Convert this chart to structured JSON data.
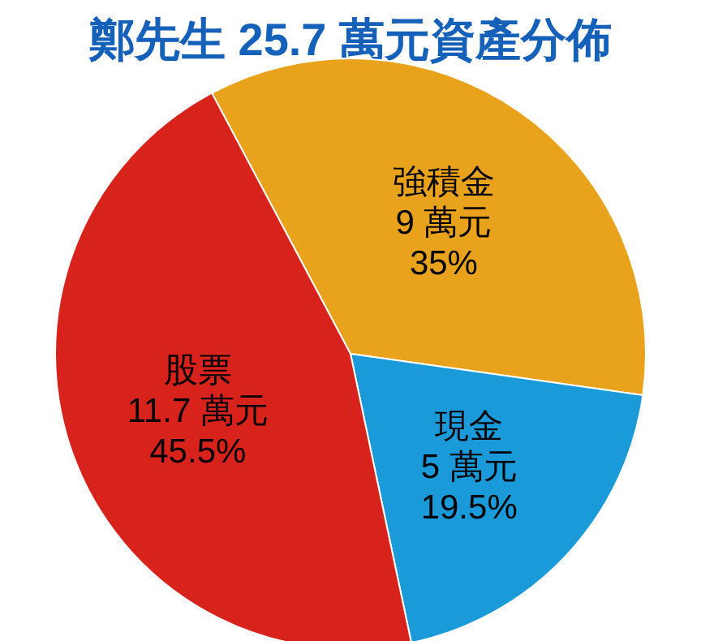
{
  "chart_data": {
    "type": "pie",
    "title": "鄭先生 25.7 萬元資產分佈",
    "categories": [
      "強積金",
      "現金",
      "股票"
    ],
    "values": [
      9,
      5,
      11.7
    ],
    "value_labels": [
      "9 萬元",
      "5 萬元",
      "11.7 萬元"
    ],
    "annotations": [
      "35%",
      "19.5%",
      "45.5%"
    ],
    "colors": [
      "#e8a21c",
      "#1a9ad8",
      "#d8231c"
    ]
  }
}
